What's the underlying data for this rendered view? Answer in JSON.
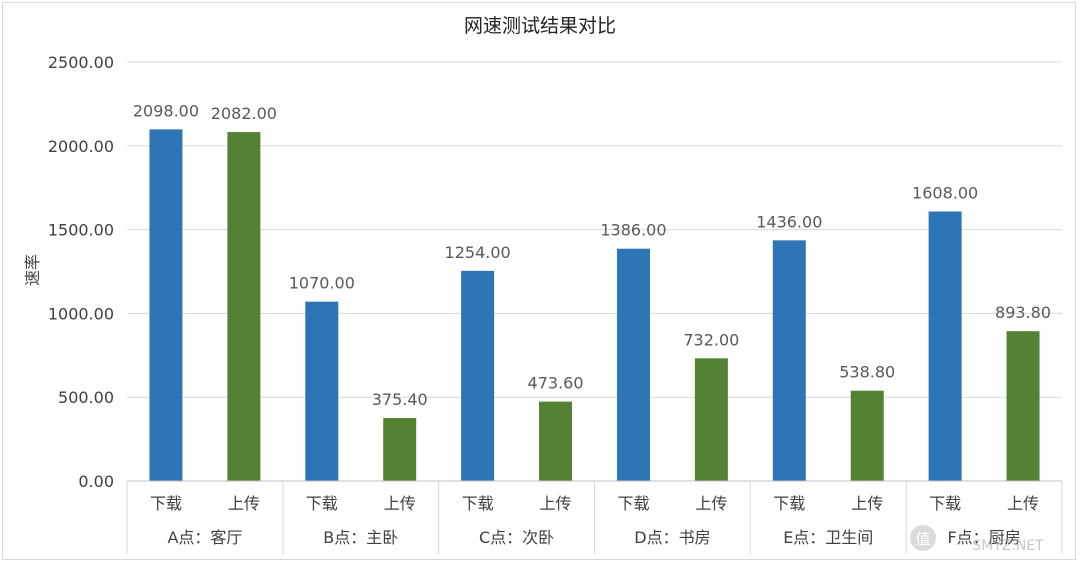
{
  "chart_data": {
    "type": "bar",
    "title": "网速测试结果对比",
    "ylabel": "速率",
    "ylim": [
      0,
      2500
    ],
    "yticks": [
      "0.00",
      "500.00",
      "1000.00",
      "1500.00",
      "2000.00",
      "2500.00"
    ],
    "grid": true,
    "groups": [
      "A点：客厅",
      "B点：主卧",
      "C点：次卧",
      "D点：书房",
      "E点：卫生间",
      "F点：厨房"
    ],
    "series": [
      {
        "name": "下载",
        "color": "#2e75b6",
        "values": [
          2098.0,
          1070.0,
          1254.0,
          1386.0,
          1436.0,
          1608.0
        ],
        "labels": [
          "2098.00",
          "1070.00",
          "1254.00",
          "1386.00",
          "1436.00",
          "1608.00"
        ]
      },
      {
        "name": "上传",
        "color": "#548235",
        "values": [
          2082.0,
          375.4,
          473.6,
          732.0,
          538.8,
          893.8
        ],
        "labels": [
          "2082.00",
          "375.40",
          "473.60",
          "732.00",
          "538.80",
          "893.80"
        ]
      }
    ]
  },
  "watermark": {
    "text": "SMYZ.NET",
    "icon": "值"
  }
}
